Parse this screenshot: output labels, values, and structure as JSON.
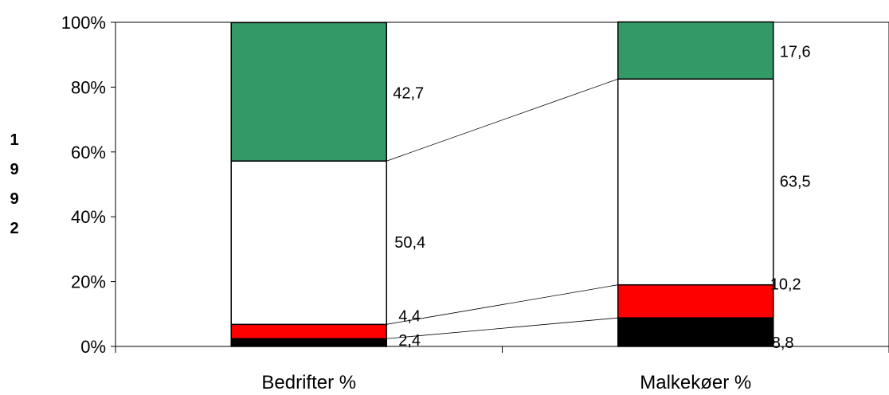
{
  "chart_data": {
    "type": "bar",
    "stacked": "percent",
    "side_label": [
      "1",
      "9",
      "9",
      "2"
    ],
    "categories": [
      "Bedrifter %",
      "Malkekøer %"
    ],
    "series": [
      {
        "values": [
          2.4,
          8.8
        ],
        "labels": [
          "2,4",
          "8,8"
        ],
        "color": "#000000"
      },
      {
        "values": [
          4.4,
          10.2
        ],
        "labels": [
          "4,4",
          "10,2"
        ],
        "color": "#ff0000"
      },
      {
        "values": [
          50.4,
          63.5
        ],
        "labels": [
          "50,4",
          "63,5"
        ],
        "color": "#ffffff"
      },
      {
        "values": [
          42.7,
          17.6
        ],
        "labels": [
          "42,7",
          "17,6"
        ],
        "color": "#339966"
      }
    ],
    "yticks": [
      "0%",
      "20%",
      "40%",
      "60%",
      "80%",
      "100%"
    ],
    "ylim": [
      0,
      100
    ],
    "grid": false,
    "legend": "none"
  }
}
